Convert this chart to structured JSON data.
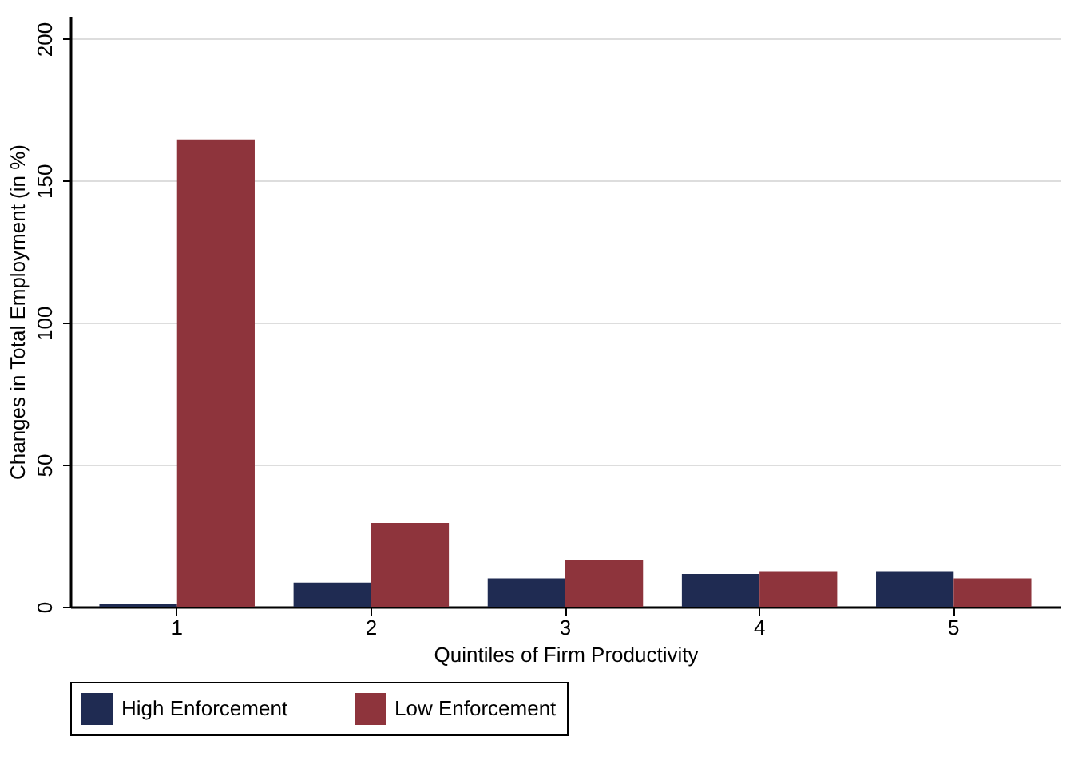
{
  "chart_data": {
    "type": "bar",
    "xlabel": "Quintiles of Firm Productivity",
    "ylabel": "Changes in Total Employment (in %)",
    "categories": [
      "1",
      "2",
      "3",
      "4",
      "5"
    ],
    "series": [
      {
        "name": "High Enforcement",
        "color": "#1f2b52",
        "values": [
          1,
          8.5,
          10,
          11.5,
          12.5
        ]
      },
      {
        "name": "Low Enforcement",
        "color": "#8e343c",
        "values": [
          164.5,
          29.5,
          16.5,
          12.5,
          10
        ]
      }
    ],
    "ylim": [
      0,
      208
    ],
    "yticks": [
      0,
      50,
      100,
      150,
      200
    ],
    "grid": "y",
    "legend": "bottom"
  }
}
